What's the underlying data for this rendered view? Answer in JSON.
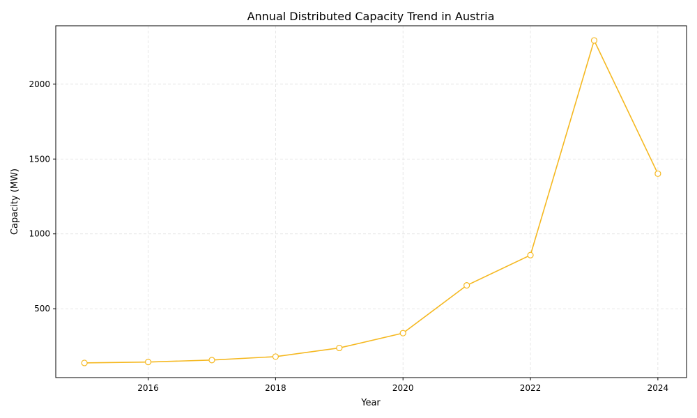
{
  "chart_data": {
    "type": "line",
    "title": "Annual Distributed Capacity Trend in Austria",
    "xlabel": "Year",
    "ylabel": "Capacity (MW)",
    "x": [
      2015,
      2016,
      2017,
      2018,
      2019,
      2020,
      2021,
      2022,
      2023,
      2024
    ],
    "series": [
      {
        "values": [
          138,
          144,
          157,
          180,
          238,
          337,
          656,
          858,
          2292,
          1402
        ],
        "color": "#f5b820"
      }
    ],
    "xlim": [
      2014.55,
      2024.45
    ],
    "ylim": [
      40,
      2390
    ],
    "xticks": [
      2016,
      2018,
      2020,
      2022,
      2024
    ],
    "yticks": [
      500,
      1000,
      1500,
      2000
    ],
    "grid": true,
    "marker": "open-circle"
  }
}
